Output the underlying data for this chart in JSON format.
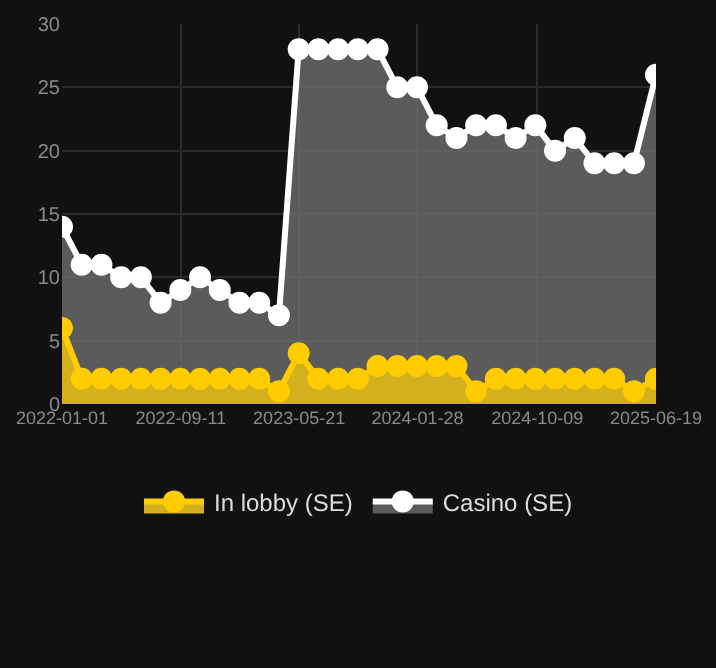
{
  "chart_data": {
    "type": "area",
    "x": [
      "2022-01-01",
      "2022-02-12",
      "2022-03-26",
      "2022-05-07",
      "2022-06-18",
      "2022-07-30",
      "2022-09-10",
      "2022-10-22",
      "2022-12-03",
      "2023-01-14",
      "2023-02-25",
      "2023-04-08",
      "2023-05-20",
      "2023-07-01",
      "2023-08-12",
      "2023-09-23",
      "2023-11-04",
      "2023-12-16",
      "2024-01-27",
      "2024-03-09",
      "2024-04-20",
      "2024-06-01",
      "2024-07-13",
      "2024-08-24",
      "2024-10-05",
      "2024-11-16",
      "2024-12-28",
      "2025-02-08",
      "2025-03-22",
      "2025-05-03",
      "2025-06-19"
    ],
    "series": [
      {
        "name": "In lobby (SE)",
        "color": "#ffcc00",
        "values": [
          6,
          2,
          2,
          2,
          2,
          2,
          2,
          2,
          2,
          2,
          2,
          1,
          4,
          2,
          2,
          2,
          3,
          3,
          3,
          3,
          3,
          1,
          2,
          2,
          2,
          2,
          2,
          2,
          2,
          1,
          2
        ]
      },
      {
        "name": "Casino (SE)",
        "color": "#ffffff",
        "values": [
          14,
          11,
          11,
          10,
          10,
          8,
          9,
          10,
          9,
          8,
          8,
          7,
          28,
          28,
          28,
          28,
          28,
          25,
          25,
          22,
          21,
          22,
          22,
          21,
          22,
          20,
          21,
          19,
          19,
          19,
          26
        ]
      }
    ],
    "xlim": [
      "2022-01-01",
      "2025-06-19"
    ],
    "xticks": [
      "2022-01-01",
      "2022-09-11",
      "2023-05-21",
      "2024-01-28",
      "2024-10-09",
      "2025-06-19"
    ],
    "ylim": [
      0,
      30
    ],
    "yticks": [
      0,
      5,
      10,
      15,
      20,
      25,
      30
    ],
    "grid": true,
    "legend": "bottom",
    "marker": "circle",
    "line_style": "solid"
  }
}
